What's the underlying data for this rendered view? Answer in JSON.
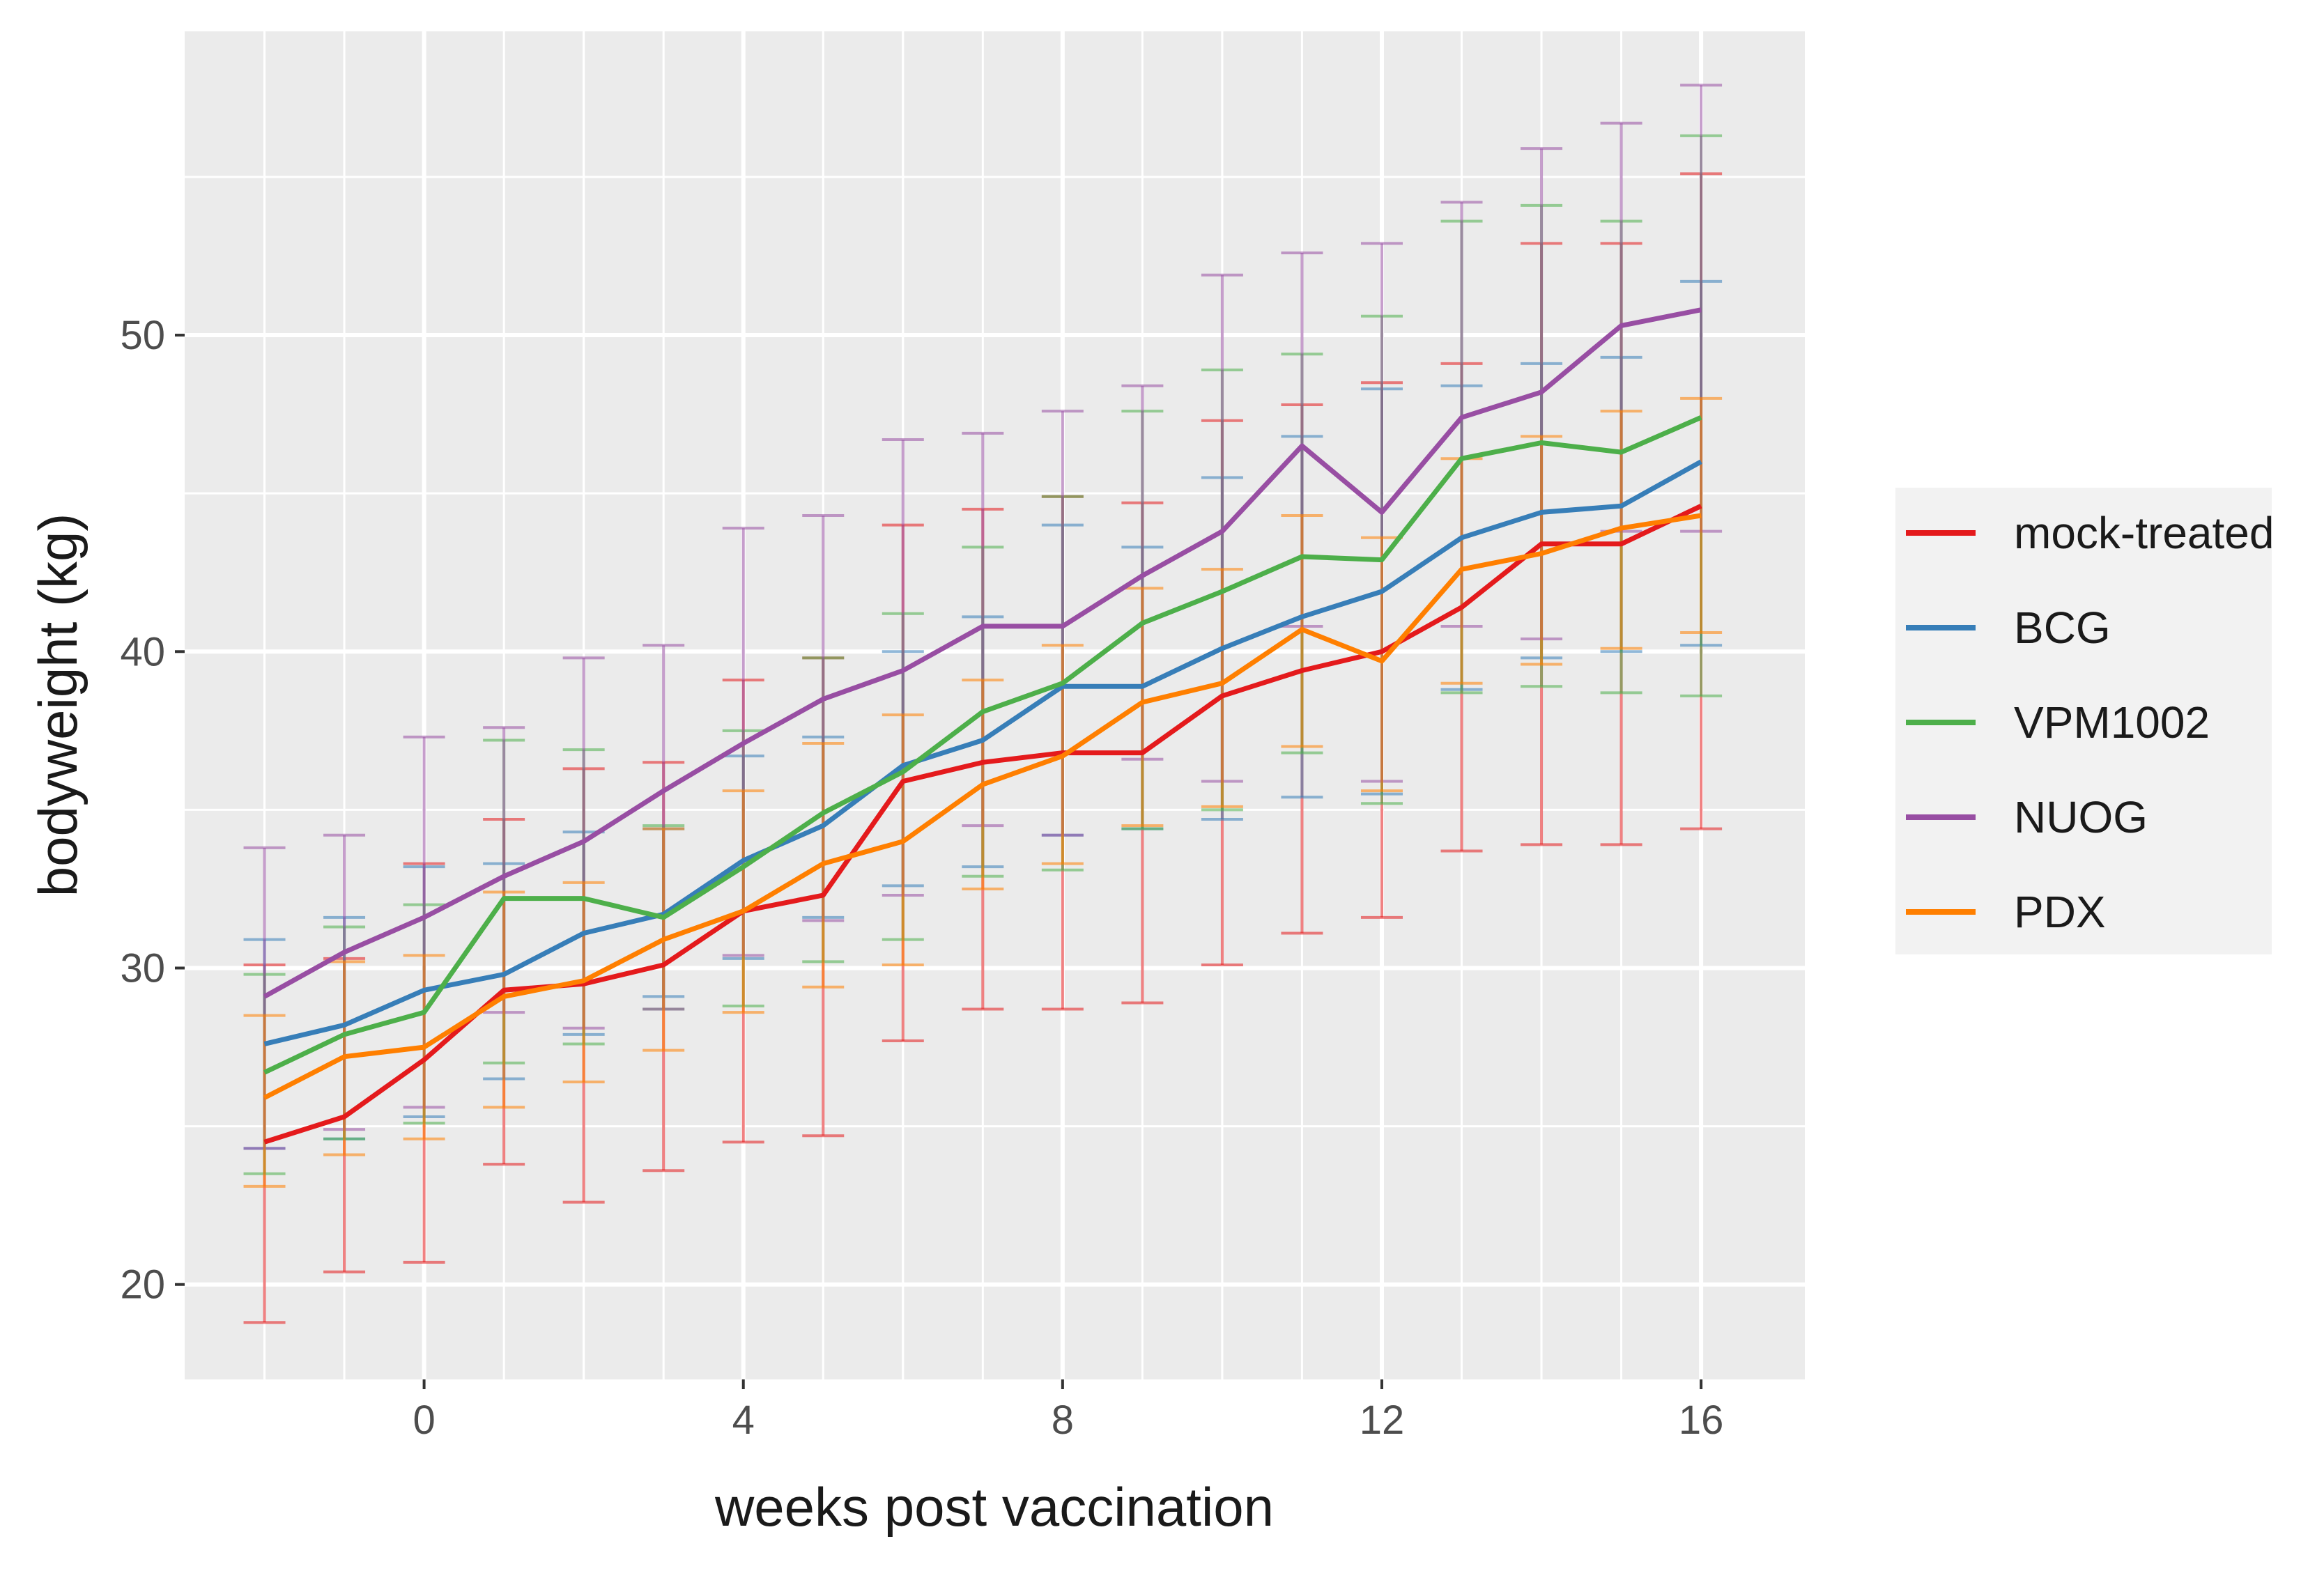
{
  "chart_data": {
    "type": "line",
    "title": "",
    "xlabel": "weeks post vaccination",
    "ylabel": "bodyweight (kg)",
    "xlim": [
      -3,
      17.3
    ],
    "ylim": [
      17,
      59.6
    ],
    "x_ticks": [
      0,
      4,
      8,
      12,
      16
    ],
    "y_ticks": [
      20,
      30,
      40,
      50
    ],
    "grid": true,
    "legend": "right",
    "x": [
      -2,
      -1,
      0,
      1,
      2,
      3,
      4,
      5,
      6,
      7,
      8,
      9,
      10,
      11,
      12,
      13,
      14,
      15,
      16
    ],
    "series": [
      {
        "name": "mock-treated",
        "color": "#e41a1c",
        "values": [
          24.5,
          25.3,
          27.1,
          29.3,
          29.5,
          30.1,
          31.8,
          32.3,
          35.9,
          36.5,
          36.8,
          36.8,
          38.6,
          39.4,
          40.0,
          41.4,
          43.4,
          43.4,
          44.6
        ],
        "lower": [
          18.8,
          20.4,
          20.7,
          23.8,
          22.6,
          23.6,
          24.5,
          24.7,
          27.7,
          28.7,
          28.7,
          28.9,
          30.1,
          31.1,
          31.6,
          33.7,
          33.9,
          33.9,
          34.4
        ],
        "upper": [
          30.1,
          30.3,
          33.3,
          34.7,
          36.3,
          36.5,
          39.1,
          39.8,
          44.0,
          44.5,
          44.9,
          44.7,
          47.3,
          47.8,
          48.5,
          49.1,
          52.9,
          52.9,
          55.1
        ]
      },
      {
        "name": "BCG",
        "color": "#377eb8",
        "values": [
          27.6,
          28.2,
          29.3,
          29.8,
          31.1,
          31.7,
          33.4,
          34.5,
          36.4,
          37.2,
          38.9,
          38.9,
          40.1,
          41.1,
          41.9,
          43.6,
          44.4,
          44.6,
          46.0
        ],
        "lower": [
          24.3,
          24.6,
          25.3,
          26.5,
          27.9,
          29.1,
          30.3,
          31.6,
          32.6,
          33.2,
          34.2,
          34.4,
          34.7,
          35.4,
          35.5,
          38.8,
          39.8,
          40.0,
          40.2
        ],
        "upper": [
          30.9,
          31.6,
          33.2,
          33.3,
          34.3,
          34.4,
          36.7,
          37.3,
          40.0,
          41.1,
          44.0,
          43.3,
          45.5,
          46.8,
          48.3,
          48.4,
          49.1,
          49.3,
          51.7
        ]
      },
      {
        "name": "VPM1002",
        "color": "#4daf4a",
        "values": [
          26.7,
          27.9,
          28.6,
          32.2,
          32.2,
          31.6,
          33.2,
          34.9,
          36.2,
          38.1,
          39.0,
          40.9,
          41.9,
          43.0,
          42.9,
          46.1,
          46.6,
          46.3,
          47.4
        ],
        "lower": [
          23.5,
          24.6,
          25.1,
          27.0,
          27.6,
          28.7,
          28.8,
          30.2,
          30.9,
          32.9,
          33.1,
          34.4,
          35.0,
          36.8,
          35.2,
          38.7,
          38.9,
          38.7,
          38.6
        ],
        "upper": [
          29.8,
          31.3,
          32.0,
          37.2,
          36.9,
          34.5,
          37.5,
          39.8,
          41.2,
          43.3,
          44.9,
          47.6,
          48.9,
          49.4,
          50.6,
          53.6,
          54.1,
          53.6,
          56.3
        ]
      },
      {
        "name": "NUOG",
        "color": "#984ea3",
        "values": [
          29.1,
          30.5,
          31.6,
          32.9,
          34.0,
          35.6,
          37.1,
          38.5,
          39.4,
          40.8,
          40.8,
          42.4,
          43.8,
          46.5,
          44.4,
          47.4,
          48.2,
          50.3,
          50.8
        ],
        "lower": [
          24.3,
          24.9,
          25.6,
          28.6,
          28.1,
          28.7,
          30.4,
          31.5,
          32.3,
          34.5,
          34.2,
          36.6,
          35.9,
          40.8,
          35.9,
          40.8,
          40.4,
          43.8,
          43.8
        ],
        "upper": [
          33.8,
          34.2,
          37.3,
          37.6,
          39.8,
          40.2,
          43.9,
          44.3,
          46.7,
          46.9,
          47.6,
          48.4,
          51.9,
          52.6,
          52.9,
          54.2,
          55.9,
          56.7,
          57.9
        ]
      },
      {
        "name": "PDX",
        "color": "#ff7f00",
        "values": [
          25.9,
          27.2,
          27.5,
          29.1,
          29.6,
          30.9,
          31.8,
          33.3,
          34.0,
          35.8,
          36.7,
          38.4,
          39.0,
          40.7,
          39.7,
          42.6,
          43.1,
          43.9,
          44.3
        ],
        "lower": [
          23.1,
          24.1,
          24.6,
          25.6,
          26.4,
          27.4,
          28.6,
          29.4,
          30.1,
          32.5,
          33.3,
          34.5,
          35.1,
          37.0,
          35.6,
          39.0,
          39.6,
          40.1,
          40.6
        ],
        "upper": [
          28.5,
          30.2,
          30.4,
          32.4,
          32.7,
          34.4,
          35.6,
          37.1,
          38.0,
          39.1,
          40.2,
          42.0,
          42.6,
          44.3,
          43.6,
          46.1,
          46.8,
          47.6,
          48.0
        ]
      }
    ]
  }
}
